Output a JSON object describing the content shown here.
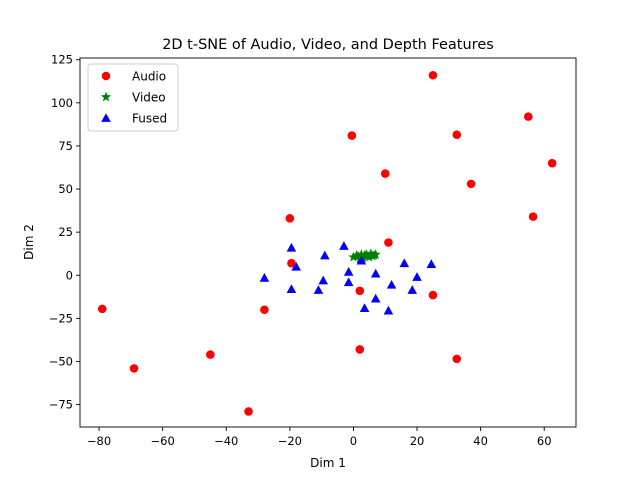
{
  "chart_data": {
    "type": "scatter",
    "title": "2D t-SNE of Audio, Video, and Depth Features",
    "xlabel": "Dim 1",
    "ylabel": "Dim 2",
    "xlim": [
      -86,
      70
    ],
    "ylim": [
      -88,
      126
    ],
    "xticks": [
      -80,
      -60,
      -40,
      -20,
      0,
      20,
      40,
      60
    ],
    "yticks": [
      -75,
      -50,
      -25,
      0,
      25,
      50,
      75,
      100,
      125
    ],
    "xtick_labels": [
      "−80",
      "−60",
      "−40",
      "−20",
      "0",
      "20",
      "40",
      "60"
    ],
    "ytick_labels": [
      "−75",
      "−50",
      "−25",
      "0",
      "25",
      "50",
      "75",
      "100",
      "125"
    ],
    "grid": false,
    "legend_position": "top-left",
    "series": [
      {
        "name": "Audio",
        "marker": "circle",
        "color": "#ff0000",
        "points": [
          [
            25,
            116
          ],
          [
            55,
            92
          ],
          [
            -0.5,
            81
          ],
          [
            32.5,
            81.5
          ],
          [
            62.5,
            65
          ],
          [
            10,
            59
          ],
          [
            37,
            53
          ],
          [
            56.5,
            34
          ],
          [
            -20,
            33
          ],
          [
            11,
            19
          ],
          [
            -19.5,
            7
          ],
          [
            2,
            -9
          ],
          [
            25,
            -11.5
          ],
          [
            -79,
            -19.5
          ],
          [
            -28,
            -20
          ],
          [
            2,
            -43
          ],
          [
            -45,
            -46
          ],
          [
            32.5,
            -48.5
          ],
          [
            -69,
            -54
          ],
          [
            -33,
            -79
          ]
        ]
      },
      {
        "name": "Video",
        "marker": "star",
        "color": "#008000",
        "points": [
          [
            0,
            10.5
          ],
          [
            1.5,
            11
          ],
          [
            2.5,
            12
          ],
          [
            3.5,
            11.5
          ],
          [
            4.5,
            11
          ],
          [
            5.5,
            12.5
          ],
          [
            6.5,
            11.5
          ],
          [
            7,
            12
          ],
          [
            2,
            9.5
          ],
          [
            3,
            10
          ],
          [
            4,
            12
          ],
          [
            6,
            11
          ],
          [
            1,
            11.5
          ],
          [
            5,
            10.5
          ],
          [
            2.5,
            9
          ]
        ]
      },
      {
        "name": "Fused",
        "marker": "triangle",
        "color": "#0000ff",
        "points": [
          [
            -3,
            17
          ],
          [
            -19.5,
            16
          ],
          [
            -9,
            11.5
          ],
          [
            2.5,
            8.5
          ],
          [
            16,
            7
          ],
          [
            24.5,
            6.5
          ],
          [
            -18,
            5
          ],
          [
            -1.5,
            2
          ],
          [
            7,
            1
          ],
          [
            -28,
            -1.5
          ],
          [
            20,
            -1
          ],
          [
            -9.5,
            -3
          ],
          [
            -1.5,
            -4
          ],
          [
            12,
            -5.5
          ],
          [
            -19.5,
            -8
          ],
          [
            -11,
            -8.5
          ],
          [
            18.5,
            -8.5
          ],
          [
            7,
            -13.5
          ],
          [
            3.5,
            -19
          ],
          [
            11,
            -20.5
          ]
        ]
      }
    ]
  }
}
